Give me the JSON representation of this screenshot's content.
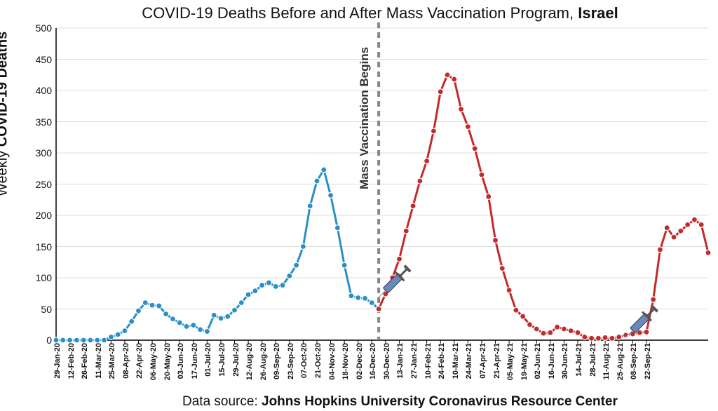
{
  "title_prefix": "COVID-19 Deaths Before and After Mass Vaccination Program, ",
  "title_bold": "Israel",
  "y_label_prefix": "Weekly ",
  "y_label_bold": "COVID-19 Deaths",
  "source_prefix": "Data source: ",
  "source_bold": "Johns Hopkins University Coronavirus Resource Center",
  "annotation_label": "Mass Vaccination Begins",
  "chart": {
    "type": "line",
    "ylim": [
      0,
      500
    ],
    "ytick_step": 50,
    "background_color": "#ffffff",
    "axis_color": "#000000",
    "grid_color": "#dddddd",
    "before_color": "#2a8fc7",
    "after_color": "#c32a2a",
    "marker_radius": 4,
    "line_width": 3,
    "divider_color": "#888888",
    "divider_dash": "8,6",
    "divider_width": 4,
    "syringe_body": "#6b88b8",
    "syringe_plunger": "#555555",
    "syringe_tip": "#aaaaaa",
    "x_labels": [
      "29-Jan-20",
      "12-Feb-20",
      "26-Feb-20",
      "11-Mar-20",
      "25-Mar-20",
      "08-Apr-20",
      "22-Apr-20",
      "06-May-20",
      "20-May-20",
      "03-Jun-20",
      "17-Jun-20",
      "01-Jul-20",
      "15-Jul-20",
      "29-Jul-20",
      "12-Aug-20",
      "26-Aug-20",
      "09-Sep-20",
      "23-Sep-20",
      "07-Oct-20",
      "21-Oct-20",
      "04-Nov-20",
      "18-Nov-20",
      "02-Dec-20",
      "16-Dec-20",
      "30-Dec-20",
      "13-Jan-21",
      "27-Jan-21",
      "10-Feb-21",
      "24-Feb-21",
      "10-Mar-21",
      "24-Mar-21",
      "07-Apr-21",
      "21-Apr-21",
      "05-May-21",
      "19-May-21",
      "02-Jun-21",
      "16-Jun-21",
      "30-Jun-21",
      "14-Jul-21",
      "28-Jul-21",
      "11-Aug-21",
      "25-Aug-21",
      "08-Sep-21",
      "22-Sep-21"
    ],
    "before_values": [
      0,
      0,
      0,
      0,
      0,
      0,
      0,
      0,
      5,
      9,
      15,
      30,
      47,
      60,
      56,
      55,
      42,
      34,
      28,
      22,
      24,
      17,
      14,
      40,
      35,
      38,
      48,
      60,
      73,
      79,
      88,
      92,
      86,
      88,
      103,
      120,
      150,
      215,
      255,
      273,
      232,
      180,
      120,
      71,
      68,
      67,
      60,
      50
    ],
    "after_values": [
      50,
      74,
      100,
      130,
      175,
      215,
      255,
      287,
      335,
      398,
      425,
      418,
      370,
      342,
      307,
      265,
      230,
      160,
      115,
      80,
      48,
      38,
      25,
      18,
      11,
      12,
      21,
      18,
      15,
      12,
      5,
      3,
      3,
      4,
      3,
      5,
      8,
      10,
      12,
      13,
      65,
      145,
      180,
      165,
      175,
      185,
      193,
      185,
      140
    ],
    "divider_index": 47,
    "syringe_positions": [
      48,
      84
    ]
  }
}
